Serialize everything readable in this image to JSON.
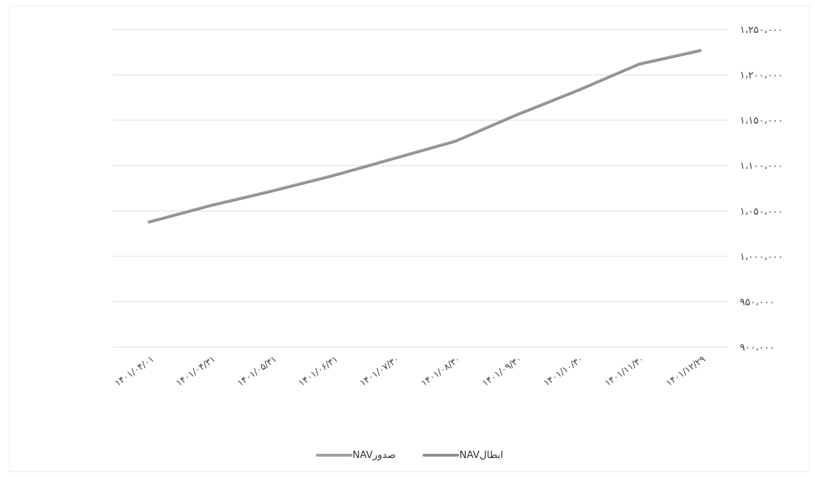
{
  "chart_data": {
    "type": "line",
    "categories": [
      "۱۴۰۱/۰۴/۰۱",
      "۱۴۰۱/۰۴/۳۱",
      "۱۴۰۱/۰۵/۳۱",
      "۱۴۰۱/۰۶/۳۱",
      "۱۴۰۱/۰۷/۳۰",
      "۱۴۰۱/۰۸/۳۰",
      "۱۴۰۱/۰۹/۳۰",
      "۱۴۰۱/۱۰/۳۰",
      "۱۴۰۱/۱۱/۳۰",
      "۱۴۰۱/۱۲/۲۹"
    ],
    "series": [
      {
        "name": "NAVصدور",
        "color": "#9e9e9e",
        "values": [
          1038000,
          1056000,
          1072000,
          1089000,
          1108000,
          1127000,
          1156000,
          1183000,
          1212000,
          1227000
        ]
      },
      {
        "name": "NAVابطال",
        "color": "#8c8c8c",
        "values": [
          1037000,
          1055000,
          1071000,
          1088000,
          1107000,
          1126000,
          1155000,
          1182000,
          1211000,
          1226000
        ]
      }
    ],
    "ylim": [
      900000,
      1250000
    ],
    "yticks": [
      900000,
      950000,
      1000000,
      1050000,
      1100000,
      1150000,
      1200000,
      1250000
    ],
    "ytick_labels": [
      "۹۰۰،۰۰۰",
      "۹۵۰،۰۰۰",
      "۱،۰۰۰،۰۰۰",
      "۱،۰۵۰،۰۰۰",
      "۱،۱۰۰،۰۰۰",
      "۱،۱۵۰،۰۰۰",
      "۱،۲۰۰،۰۰۰",
      "۱،۲۵۰،۰۰۰"
    ],
    "grid": true,
    "legend": "bottom",
    "yaxis_side": "right",
    "title": "",
    "xlabel": "",
    "ylabel": ""
  }
}
